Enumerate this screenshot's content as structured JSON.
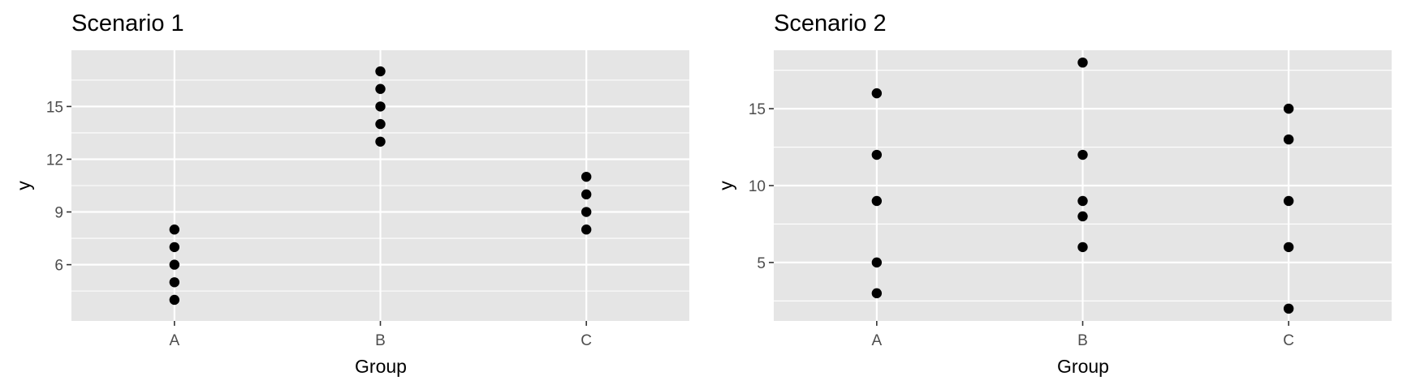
{
  "chart_data": [
    {
      "type": "scatter",
      "title": "Scenario 1",
      "xlabel": "Group",
      "ylabel": "y",
      "categories": [
        "A",
        "B",
        "C"
      ],
      "ylim": [
        2.8,
        18.2
      ],
      "yticks": [
        6,
        9,
        12,
        15
      ],
      "grid": true,
      "points": {
        "A": [
          4,
          5,
          6,
          7,
          8
        ],
        "B": [
          13,
          14,
          15,
          16,
          17
        ],
        "C": [
          8,
          9,
          10,
          11
        ]
      }
    },
    {
      "type": "scatter",
      "title": "Scenario 2",
      "xlabel": "Group",
      "ylabel": "y",
      "categories": [
        "A",
        "B",
        "C"
      ],
      "ylim": [
        1.2,
        18.8
      ],
      "yticks": [
        5,
        10,
        15
      ],
      "grid": true,
      "points": {
        "A": [
          3,
          5,
          9,
          12,
          16
        ],
        "B": [
          6,
          8,
          9,
          12,
          18
        ],
        "C": [
          2,
          6,
          9,
          13,
          15
        ]
      }
    }
  ]
}
